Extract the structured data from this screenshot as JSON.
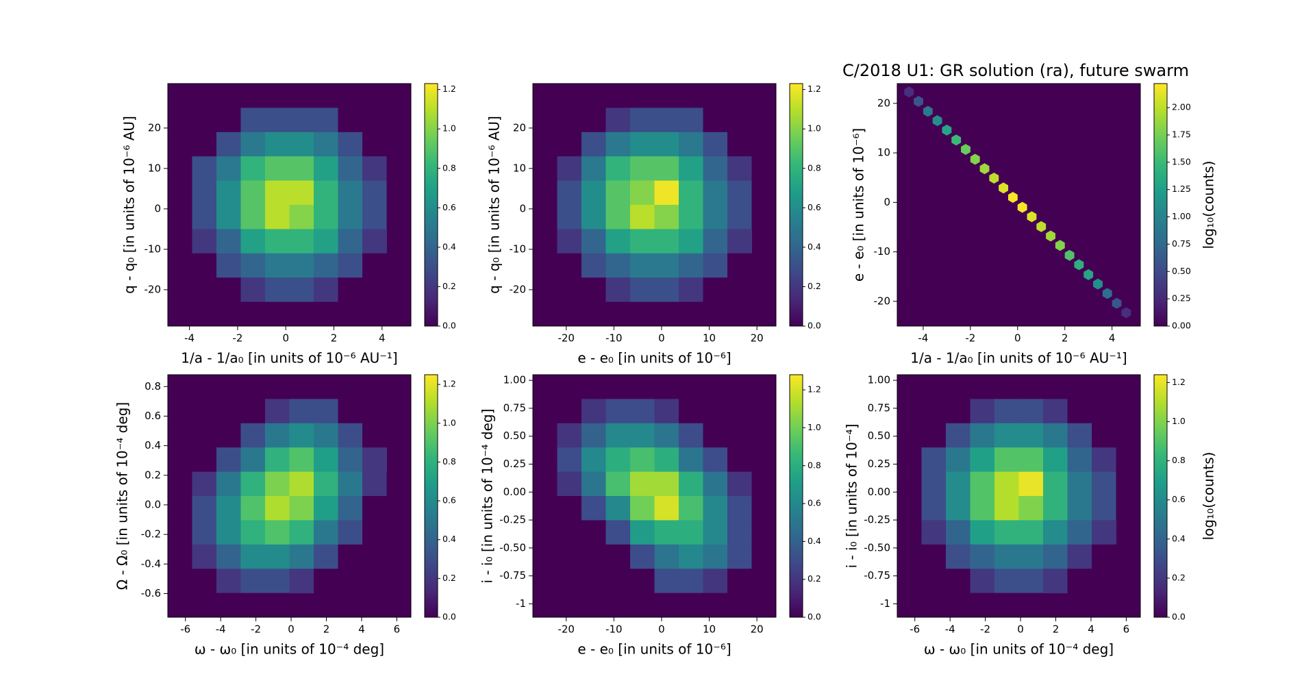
{
  "title": "C/2018 U1: GR solution (ra), future swarm",
  "chart_data": [
    {
      "type": "hexbin",
      "xlabel": "1/a - 1/a₀ [in units of 10⁻⁶ AU⁻¹]",
      "ylabel": "q - q₀ [in units of 10⁻⁶ AU]",
      "colormap": "viridis",
      "xlim": [
        -4.9,
        5.2
      ],
      "xticks": [
        -4,
        -2,
        0,
        2,
        4
      ],
      "ylim": [
        -29,
        31
      ],
      "yticks": [
        -20,
        -10,
        0,
        10,
        20
      ],
      "clim": [
        0,
        1.23
      ],
      "cticks": [
        {
          "value": 0,
          "label": "0.0"
        },
        {
          "value": 0.2,
          "label": "0.2"
        },
        {
          "value": 0.4,
          "label": "0.4"
        },
        {
          "value": 0.6,
          "label": "0.6"
        },
        {
          "value": 0.8,
          "label": "0.8"
        },
        {
          "value": 1,
          "label": "1.0"
        },
        {
          "value": 1.2,
          "label": "1.2"
        }
      ],
      "grid": [
        [
          null,
          null,
          null,
          null,
          0,
          0,
          null,
          null,
          null,
          null
        ],
        [
          null,
          null,
          0,
          0.3,
          0.3,
          0.3,
          0.3,
          0,
          null,
          null
        ],
        [
          null,
          0,
          0.3,
          0.5,
          0.6,
          0.6,
          0.5,
          0.3,
          0,
          null
        ],
        [
          0,
          0.3,
          0.5,
          0.8,
          0.9,
          0.9,
          0.7,
          0.4,
          0.2,
          0
        ],
        [
          0,
          0.3,
          0.6,
          0.9,
          1.1,
          1.1,
          0.8,
          0.5,
          0.3,
          0
        ],
        [
          0,
          0.3,
          0.6,
          0.9,
          1.1,
          1.0,
          0.8,
          0.5,
          0.3,
          0
        ],
        [
          null,
          0.2,
          0.4,
          0.7,
          0.8,
          0.8,
          0.7,
          0.4,
          0.2,
          null
        ],
        [
          null,
          0,
          0.3,
          0.4,
          0.5,
          0.5,
          0.4,
          0.3,
          0,
          null
        ],
        [
          null,
          null,
          0,
          0.2,
          0.3,
          0.3,
          0.2,
          0,
          null,
          null
        ],
        [
          null,
          null,
          null,
          0,
          0,
          0,
          0,
          null,
          null,
          null
        ]
      ]
    },
    {
      "type": "hexbin",
      "xlabel": "e - e₀ [in units of 10⁻⁶]",
      "ylabel": "q - q₀ [in units of 10⁻⁶ AU]",
      "colormap": "viridis",
      "xlim": [
        -27,
        24
      ],
      "xticks": [
        -20,
        -10,
        0,
        10,
        20
      ],
      "ylim": [
        -29,
        31
      ],
      "yticks": [
        -20,
        -10,
        0,
        10,
        20
      ],
      "clim": [
        0,
        1.23
      ],
      "cticks": [
        {
          "value": 0,
          "label": "0.0"
        },
        {
          "value": 0.2,
          "label": "0.2"
        },
        {
          "value": 0.4,
          "label": "0.4"
        },
        {
          "value": 0.6,
          "label": "0.6"
        },
        {
          "value": 0.8,
          "label": "0.8"
        },
        {
          "value": 1,
          "label": "1.0"
        },
        {
          "value": 1.2,
          "label": "1.2"
        }
      ],
      "grid": [
        [
          null,
          null,
          null,
          null,
          0,
          0,
          null,
          null,
          null,
          null
        ],
        [
          null,
          null,
          0,
          0.2,
          0.3,
          0.3,
          0.3,
          0,
          null,
          null
        ],
        [
          null,
          0,
          0.3,
          0.5,
          0.6,
          0.6,
          0.5,
          0.3,
          0,
          null
        ],
        [
          0,
          0.2,
          0.5,
          0.8,
          0.9,
          0.9,
          0.7,
          0.4,
          0.2,
          0
        ],
        [
          0,
          0.3,
          0.6,
          0.9,
          1.0,
          1.2,
          0.8,
          0.5,
          0.3,
          0
        ],
        [
          0,
          0.3,
          0.6,
          0.9,
          1.1,
          1.0,
          0.8,
          0.5,
          0.3,
          0
        ],
        [
          null,
          0.2,
          0.4,
          0.7,
          0.8,
          0.8,
          0.7,
          0.4,
          0.2,
          null
        ],
        [
          null,
          0,
          0.3,
          0.4,
          0.5,
          0.5,
          0.4,
          0.3,
          0,
          null
        ],
        [
          null,
          null,
          0,
          0.2,
          0.3,
          0.3,
          0.2,
          0,
          null,
          null
        ],
        [
          null,
          null,
          null,
          0,
          0,
          0,
          0,
          null,
          null,
          null
        ]
      ]
    },
    {
      "type": "hexbin",
      "xlabel": "1/a - 1/a₀ [in units of 10⁻⁶ AU⁻¹]",
      "ylabel": "e - e₀ [in units of 10⁻⁶]",
      "clabel": "log₁₀(counts)",
      "colormap": "viridis",
      "xlim": [
        -5.1,
        5.2
      ],
      "xticks": [
        -4,
        -2,
        0,
        2,
        4
      ],
      "ylim": [
        -25,
        24
      ],
      "yticks": [
        -20,
        -10,
        0,
        10,
        20
      ],
      "clim": [
        0,
        2.22
      ],
      "cticks": [
        {
          "value": 0,
          "label": "0.00"
        },
        {
          "value": 0.25,
          "label": "0.25"
        },
        {
          "value": 0.5,
          "label": "0.50"
        },
        {
          "value": 0.75,
          "label": "0.75"
        },
        {
          "value": 1,
          "label": "1.00"
        },
        {
          "value": 1.25,
          "label": "1.25"
        },
        {
          "value": 1.5,
          "label": "1.50"
        },
        {
          "value": 1.75,
          "label": "1.75"
        },
        {
          "value": 2,
          "label": "2.00"
        }
      ],
      "x": [
        -4.6,
        -4.2,
        -3.8,
        -3.4,
        -3.0,
        -2.6,
        -2.2,
        -1.8,
        -1.4,
        -1.0,
        -0.6,
        -0.2,
        0.2,
        0.6,
        1.0,
        1.4,
        1.8,
        2.2,
        2.6,
        3.0,
        3.4,
        3.8,
        4.2,
        4.6
      ],
      "y": [
        22.3,
        20.4,
        18.4,
        16.5,
        14.6,
        12.6,
        10.7,
        8.7,
        6.8,
        4.9,
        2.9,
        1.0,
        -1.0,
        -2.9,
        -4.9,
        -6.8,
        -8.7,
        -10.7,
        -12.6,
        -14.6,
        -16.5,
        -18.4,
        -20.4,
        -22.3
      ],
      "values": [
        0.3,
        0.6,
        0.9,
        1.1,
        1.3,
        1.5,
        1.7,
        1.8,
        1.9,
        2.0,
        2.1,
        2.2,
        2.2,
        2.1,
        2.0,
        1.9,
        1.8,
        1.6,
        1.4,
        1.3,
        1.1,
        0.8,
        0.6,
        0.3
      ]
    },
    {
      "type": "hexbin",
      "xlabel": "ω - ω₀ [in units of 10⁻⁴ deg]",
      "ylabel": "Ω - Ω₀ [in units of 10⁻⁴ deg]",
      "colormap": "viridis",
      "xlim": [
        -7,
        6.8
      ],
      "xticks": [
        -6,
        -4,
        -2,
        0,
        2,
        4,
        6
      ],
      "ylim": [
        -0.76,
        0.88
      ],
      "yticks": [
        -0.6,
        -0.4,
        -0.2,
        {
          "value": 0,
          "label": "0.0"
        },
        0.2,
        0.4,
        0.6,
        0.8
      ],
      "clim": [
        0,
        1.25
      ],
      "cticks": [
        {
          "value": 0,
          "label": "0.0"
        },
        {
          "value": 0.2,
          "label": "0.2"
        },
        {
          "value": 0.4,
          "label": "0.4"
        },
        {
          "value": 0.6,
          "label": "0.6"
        },
        {
          "value": 0.8,
          "label": "0.8"
        },
        {
          "value": 1,
          "label": "1.0"
        },
        {
          "value": 1.2,
          "label": "1.2"
        }
      ],
      "grid": [
        [
          null,
          null,
          null,
          null,
          null,
          0,
          0,
          null,
          null,
          null
        ],
        [
          null,
          null,
          null,
          0,
          0.2,
          0.3,
          0.3,
          0,
          null,
          null
        ],
        [
          null,
          null,
          0,
          0.3,
          0.5,
          0.6,
          0.5,
          0.3,
          0,
          null
        ],
        [
          null,
          0,
          0.3,
          0.5,
          0.8,
          0.9,
          0.7,
          0.4,
          0.2,
          null
        ],
        [
          0,
          0.2,
          0.5,
          0.8,
          1.0,
          1.1,
          0.8,
          0.5,
          0.2,
          0
        ],
        [
          0,
          0.3,
          0.6,
          0.9,
          1.1,
          1.0,
          0.7,
          0.4,
          0,
          null
        ],
        [
          0,
          0.3,
          0.6,
          0.8,
          0.9,
          0.8,
          0.5,
          0.3,
          0,
          null
        ],
        [
          null,
          0.2,
          0.4,
          0.6,
          0.6,
          0.5,
          0.3,
          0,
          null,
          null
        ],
        [
          null,
          0,
          0.2,
          0.3,
          0.3,
          0.2,
          0,
          null,
          null,
          null
        ],
        [
          null,
          null,
          0,
          0,
          0,
          null,
          null,
          null,
          null,
          null
        ]
      ]
    },
    {
      "type": "hexbin",
      "xlabel": "e - e₀ [in units of 10⁻⁶]",
      "ylabel": "i - i₀ [in units of 10⁻⁴ deg]",
      "colormap": "viridis",
      "xlim": [
        -27,
        24
      ],
      "xticks": [
        -20,
        -10,
        0,
        10,
        20
      ],
      "ylim": [
        -1.12,
        1.05
      ],
      "yticks": [
        -1,
        -0.75,
        {
          "value": -0.5,
          "label": "-0.50"
        },
        -0.25,
        {
          "value": 0,
          "label": "0.00"
        },
        0.25,
        {
          "value": 0.5,
          "label": "0.50"
        },
        0.75,
        {
          "value": 1,
          "label": "1.00"
        }
      ],
      "clim": [
        0,
        1.28
      ],
      "cticks": [
        {
          "value": 0,
          "label": "0.0"
        },
        {
          "value": 0.2,
          "label": "0.2"
        },
        {
          "value": 0.4,
          "label": "0.4"
        },
        {
          "value": 0.6,
          "label": "0.6"
        },
        {
          "value": 0.8,
          "label": "0.8"
        },
        {
          "value": 1,
          "label": "1.0"
        },
        {
          "value": 1.2,
          "label": "1.2"
        }
      ],
      "grid": [
        [
          null,
          null,
          0,
          0,
          0,
          null,
          null,
          null,
          null,
          null
        ],
        [
          null,
          0,
          0.2,
          0.3,
          0.3,
          0.2,
          0,
          null,
          null,
          null
        ],
        [
          0,
          0.2,
          0.4,
          0.6,
          0.6,
          0.5,
          0.3,
          0,
          null,
          null
        ],
        [
          0,
          0.3,
          0.6,
          0.8,
          0.9,
          0.8,
          0.5,
          0.3,
          0,
          null
        ],
        [
          null,
          0.2,
          0.5,
          0.9,
          1.1,
          1.1,
          0.8,
          0.5,
          0.2,
          0
        ],
        [
          null,
          0,
          0.3,
          0.6,
          1.0,
          1.2,
          0.9,
          0.6,
          0.3,
          0
        ],
        [
          null,
          null,
          0,
          0.3,
          0.7,
          0.8,
          0.8,
          0.6,
          0.3,
          0
        ],
        [
          null,
          null,
          null,
          0,
          0.3,
          0.5,
          0.6,
          0.5,
          0.3,
          0
        ],
        [
          null,
          null,
          null,
          null,
          0,
          0.3,
          0.3,
          0.2,
          0,
          null
        ],
        [
          null,
          null,
          null,
          null,
          null,
          0,
          0,
          0,
          null,
          null
        ]
      ]
    },
    {
      "type": "hexbin",
      "xlabel": "ω - ω₀ [in units of 10⁻⁴ deg]",
      "ylabel": "i - i₀ [in units of 10⁻⁴]",
      "clabel": "log₁₀(counts)",
      "colormap": "viridis",
      "xlim": [
        -7,
        6.8
      ],
      "xticks": [
        -6,
        -4,
        -2,
        0,
        2,
        4,
        6
      ],
      "ylim": [
        -1.12,
        1.05
      ],
      "yticks": [
        -1,
        -0.75,
        {
          "value": -0.5,
          "label": "-0.50"
        },
        -0.25,
        {
          "value": 0,
          "label": "0.00"
        },
        0.25,
        {
          "value": 0.5,
          "label": "0.50"
        },
        0.75,
        {
          "value": 1,
          "label": "1.00"
        }
      ],
      "clim": [
        0,
        1.24
      ],
      "cticks": [
        {
          "value": 0,
          "label": "0.0"
        },
        {
          "value": 0.2,
          "label": "0.2"
        },
        {
          "value": 0.4,
          "label": "0.4"
        },
        {
          "value": 0.6,
          "label": "0.6"
        },
        {
          "value": 0.8,
          "label": "0.8"
        },
        {
          "value": 1,
          "label": "1.0"
        },
        {
          "value": 1.2,
          "label": "1.2"
        }
      ],
      "grid": [
        [
          null,
          null,
          null,
          null,
          0,
          0,
          0,
          null,
          null,
          null
        ],
        [
          null,
          null,
          0,
          0.2,
          0.3,
          0.3,
          0.2,
          0,
          null,
          null
        ],
        [
          null,
          0,
          0.3,
          0.5,
          0.6,
          0.6,
          0.5,
          0.3,
          0,
          null
        ],
        [
          0,
          0.3,
          0.5,
          0.7,
          0.9,
          0.9,
          0.7,
          0.4,
          0.2,
          0
        ],
        [
          0,
          0.3,
          0.6,
          0.9,
          1.1,
          1.2,
          0.8,
          0.5,
          0.3,
          0
        ],
        [
          0,
          0.3,
          0.6,
          0.9,
          1.1,
          1.0,
          0.8,
          0.5,
          0.3,
          0
        ],
        [
          null,
          0.2,
          0.4,
          0.7,
          0.8,
          0.8,
          0.6,
          0.4,
          0.2,
          null
        ],
        [
          null,
          0,
          0.3,
          0.4,
          0.5,
          0.5,
          0.4,
          0.2,
          0,
          null
        ],
        [
          null,
          null,
          0,
          0.2,
          0.3,
          0.3,
          0.2,
          0,
          null,
          null
        ],
        [
          null,
          null,
          null,
          0,
          0,
          0,
          null,
          null,
          null,
          null
        ]
      ]
    }
  ]
}
